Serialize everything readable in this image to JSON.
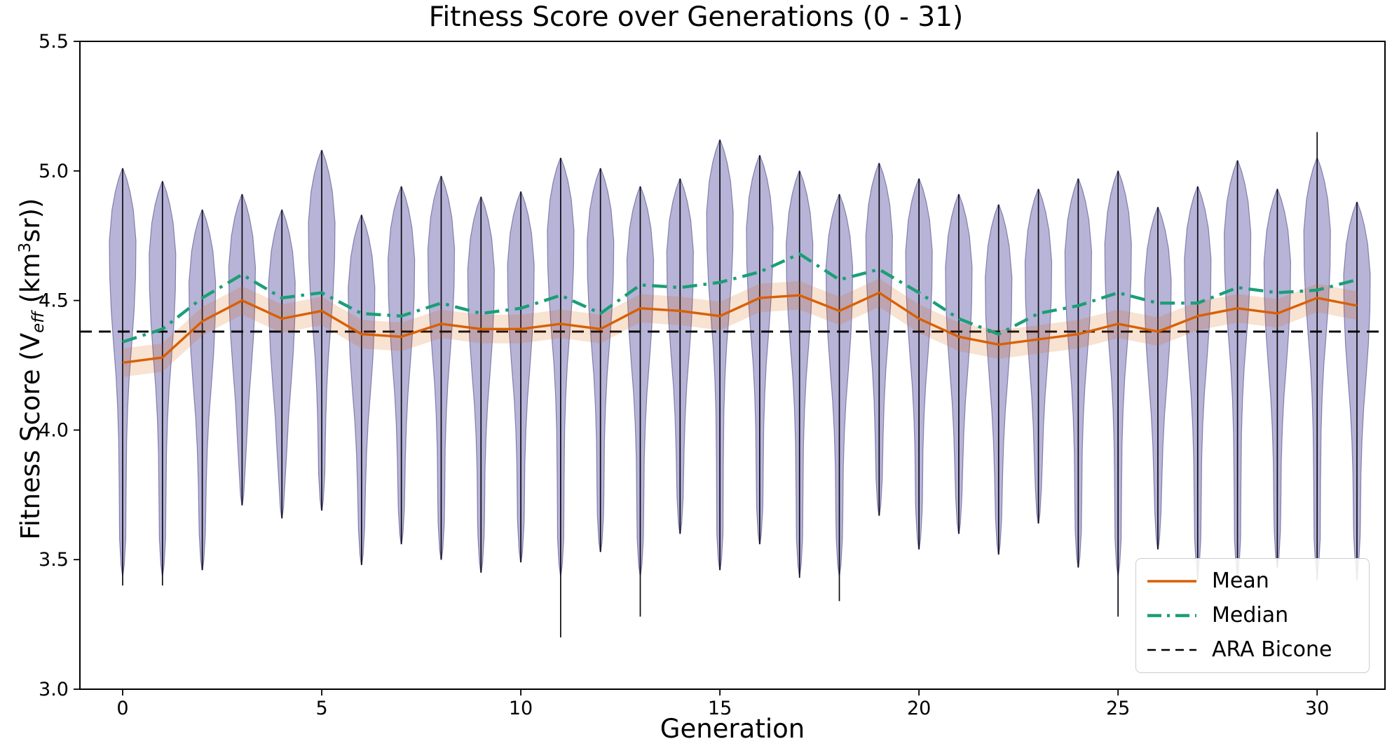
{
  "title": "Fitness Score over Generations (0 - 31)",
  "xlabel": "Generation",
  "ylabel": {
    "p1": "Fitness Score (V",
    "sub": "eff",
    "p2": " (km",
    "sup": "3",
    "p3": "sr))"
  },
  "legend": {
    "items": [
      {
        "label": "Mean",
        "color": "#d95f02",
        "dash": "",
        "width": 3.5
      },
      {
        "label": "Median",
        "color": "#1b9e77",
        "dash": "20 8 4 8",
        "width": 4.5
      },
      {
        "label": "ARA Bicone",
        "color": "#000000",
        "dash": "12 8",
        "width": 2.6
      }
    ]
  },
  "chart_data": {
    "type": "violin",
    "title": "Fitness Score over Generations (0 - 31)",
    "xlabel": "Generation",
    "ylabel": "Fitness Score (V_eff (km^3 sr))",
    "x": [
      0,
      1,
      2,
      3,
      4,
      5,
      6,
      7,
      8,
      9,
      10,
      11,
      12,
      13,
      14,
      15,
      16,
      17,
      18,
      19,
      20,
      21,
      22,
      23,
      24,
      25,
      26,
      27,
      28,
      29,
      30,
      31
    ],
    "x_tick_labels": [
      "0",
      "5",
      "10",
      "15",
      "20",
      "25",
      "30"
    ],
    "x_tick_values": [
      0,
      5,
      10,
      15,
      20,
      25,
      30
    ],
    "y_tick_labels": [
      "3.0",
      "3.5",
      "4.0",
      "4.5",
      "5.0",
      "5.5"
    ],
    "y_tick_values": [
      3.0,
      3.5,
      4.0,
      4.5,
      5.0,
      5.5
    ],
    "ylim": [
      3.0,
      5.5
    ],
    "grid": false,
    "legend_position": "lower right",
    "series": [
      {
        "name": "Mean",
        "type": "line",
        "color": "#d95f02",
        "values": [
          4.26,
          4.28,
          4.42,
          4.5,
          4.43,
          4.46,
          4.37,
          4.36,
          4.41,
          4.39,
          4.39,
          4.41,
          4.39,
          4.47,
          4.46,
          4.44,
          4.51,
          4.52,
          4.46,
          4.53,
          4.43,
          4.36,
          4.33,
          4.35,
          4.37,
          4.41,
          4.38,
          4.44,
          4.47,
          4.45,
          4.51,
          4.48
        ]
      },
      {
        "name": "Median",
        "type": "dash-dot line",
        "color": "#1b9e77",
        "values": [
          4.34,
          4.39,
          4.51,
          4.6,
          4.51,
          4.53,
          4.45,
          4.44,
          4.49,
          4.45,
          4.47,
          4.52,
          4.45,
          4.56,
          4.55,
          4.57,
          4.61,
          4.68,
          4.58,
          4.62,
          4.53,
          4.43,
          4.37,
          4.45,
          4.48,
          4.53,
          4.49,
          4.49,
          4.55,
          4.53,
          4.54,
          4.58
        ]
      },
      {
        "name": "ARA Bicone",
        "type": "hline",
        "color": "#000000",
        "value": 4.38
      }
    ],
    "violins": {
      "fill": "#7570b3",
      "edge": "#54518c",
      "vmax": [
        5.01,
        4.96,
        4.85,
        4.91,
        4.85,
        5.08,
        4.83,
        4.94,
        4.98,
        4.9,
        4.92,
        5.05,
        5.01,
        4.94,
        4.97,
        5.12,
        5.06,
        5.0,
        4.91,
        5.03,
        4.97,
        4.91,
        4.87,
        4.93,
        4.97,
        5.0,
        4.86,
        4.94,
        5.04,
        4.93,
        5.15,
        4.88
      ],
      "vmin": [
        3.4,
        3.4,
        3.46,
        3.71,
        3.66,
        3.69,
        3.48,
        3.56,
        3.5,
        3.45,
        3.49,
        3.2,
        3.53,
        3.28,
        3.6,
        3.46,
        3.56,
        3.43,
        3.34,
        3.67,
        3.54,
        3.6,
        3.52,
        3.64,
        3.47,
        3.28,
        3.54,
        3.42,
        3.41,
        3.47,
        3.42,
        3.42
      ],
      "body_max_override": {
        "30": 5.05
      },
      "body_min_floor": 3.44
    },
    "mean_band_halfwidth": 0.055
  }
}
